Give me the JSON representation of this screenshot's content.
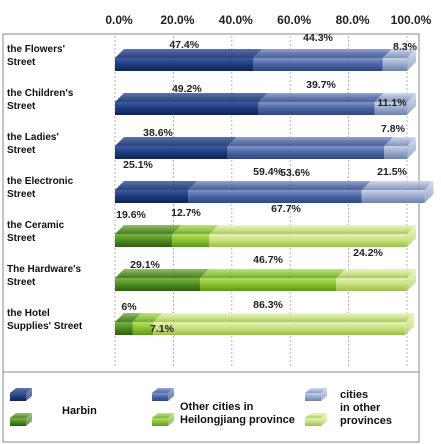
{
  "chart_data": {
    "type": "bar",
    "orientation": "horizontal",
    "stacked": "percent",
    "title": "",
    "xlabel": "",
    "ylabel": "",
    "xlim": [
      0,
      100
    ],
    "x_ticks": [
      "0.0%",
      "20.0%",
      "40.0%",
      "60.0%",
      "80.0%",
      "100.0%"
    ],
    "grid": "vertical dashed",
    "legend_position": "bottom",
    "categories": [
      [
        "the Flowers'",
        "Street"
      ],
      [
        "the Children's",
        " Street"
      ],
      [
        "the Ladies'",
        "Street"
      ],
      [
        "the Electronic",
        "Street"
      ],
      [
        "the Ceramic",
        "Street"
      ],
      [
        "The Hardware's",
        "Street"
      ],
      [
        "the Hotel",
        "Supplies' Street"
      ]
    ],
    "series": [
      {
        "values": [
          47.4,
          49.2,
          38.6,
          25.1,
          19.6,
          29.1,
          6.0
        ]
      },
      {
        "values": [
          44.3,
          39.7,
          53.6,
          59.4,
          12.7,
          46.7,
          7.1
        ]
      },
      {
        "values": [
          8.3,
          11.1,
          7.8,
          21.5,
          67.7,
          24.2,
          86.3
        ]
      }
    ],
    "value_labels": [
      [
        "47.4%",
        "49.2%",
        "38.6%",
        "25.1%",
        "19.6%",
        "29.1%",
        "6%"
      ],
      [
        "44.3%",
        "39.7%",
        "53.6%",
        "59.4%",
        "12.7%",
        "46.7%",
        "7.1%"
      ],
      [
        "8.3%",
        "11.1%",
        "7.8%",
        "21.5%",
        "67.7%",
        "24.2%",
        "86.3%"
      ]
    ],
    "legend": [
      [
        "Harbin"
      ],
      [
        "Other cities in",
        "Heilongjiang province"
      ],
      [
        "cities",
        "in other",
        "provinces"
      ]
    ],
    "colors": {
      "harbin": "#1d3a7a",
      "heilongjiang": "#4a62a2",
      "other_provinces": "#97a8cc",
      "green_dark": "#4d8a22",
      "green_mid": "#88c232",
      "green_light": "#c6e07c"
    }
  }
}
